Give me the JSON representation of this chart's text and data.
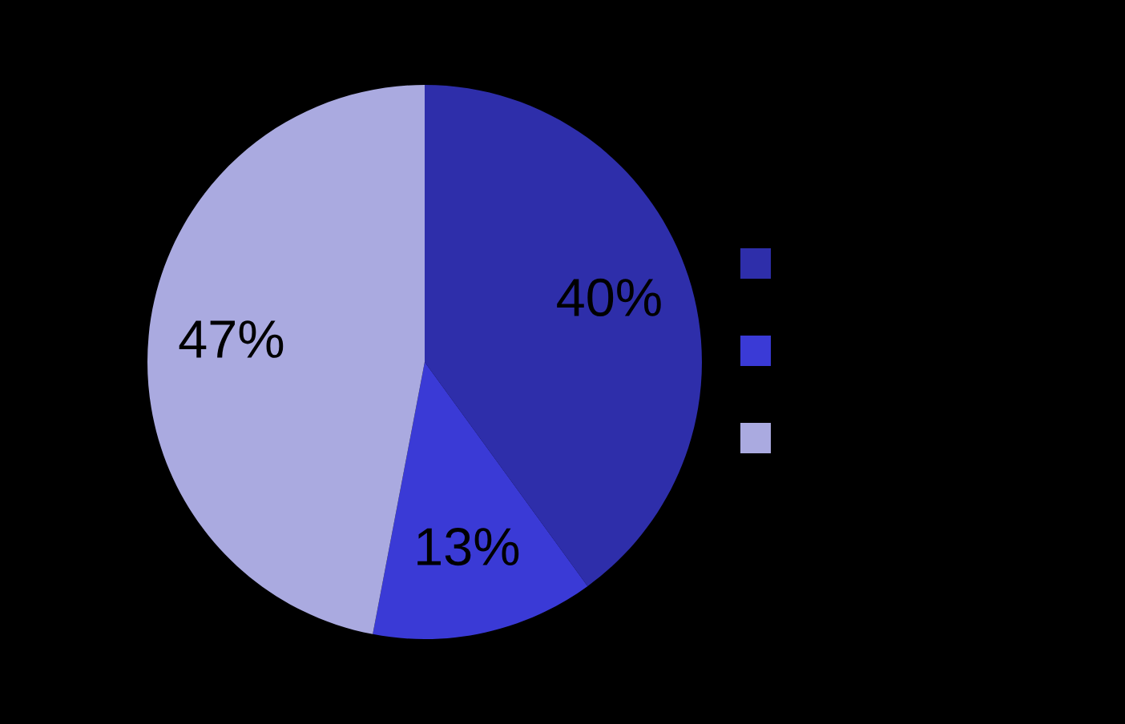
{
  "chart_data": {
    "type": "pie",
    "categories": [
      null,
      null,
      null
    ],
    "values": [
      40,
      13,
      47
    ],
    "colors": [
      "#2e2eaa",
      "#3a3ad6",
      "#aaaae0"
    ],
    "value_labels": [
      "40%",
      "13%",
      "47%"
    ]
  }
}
